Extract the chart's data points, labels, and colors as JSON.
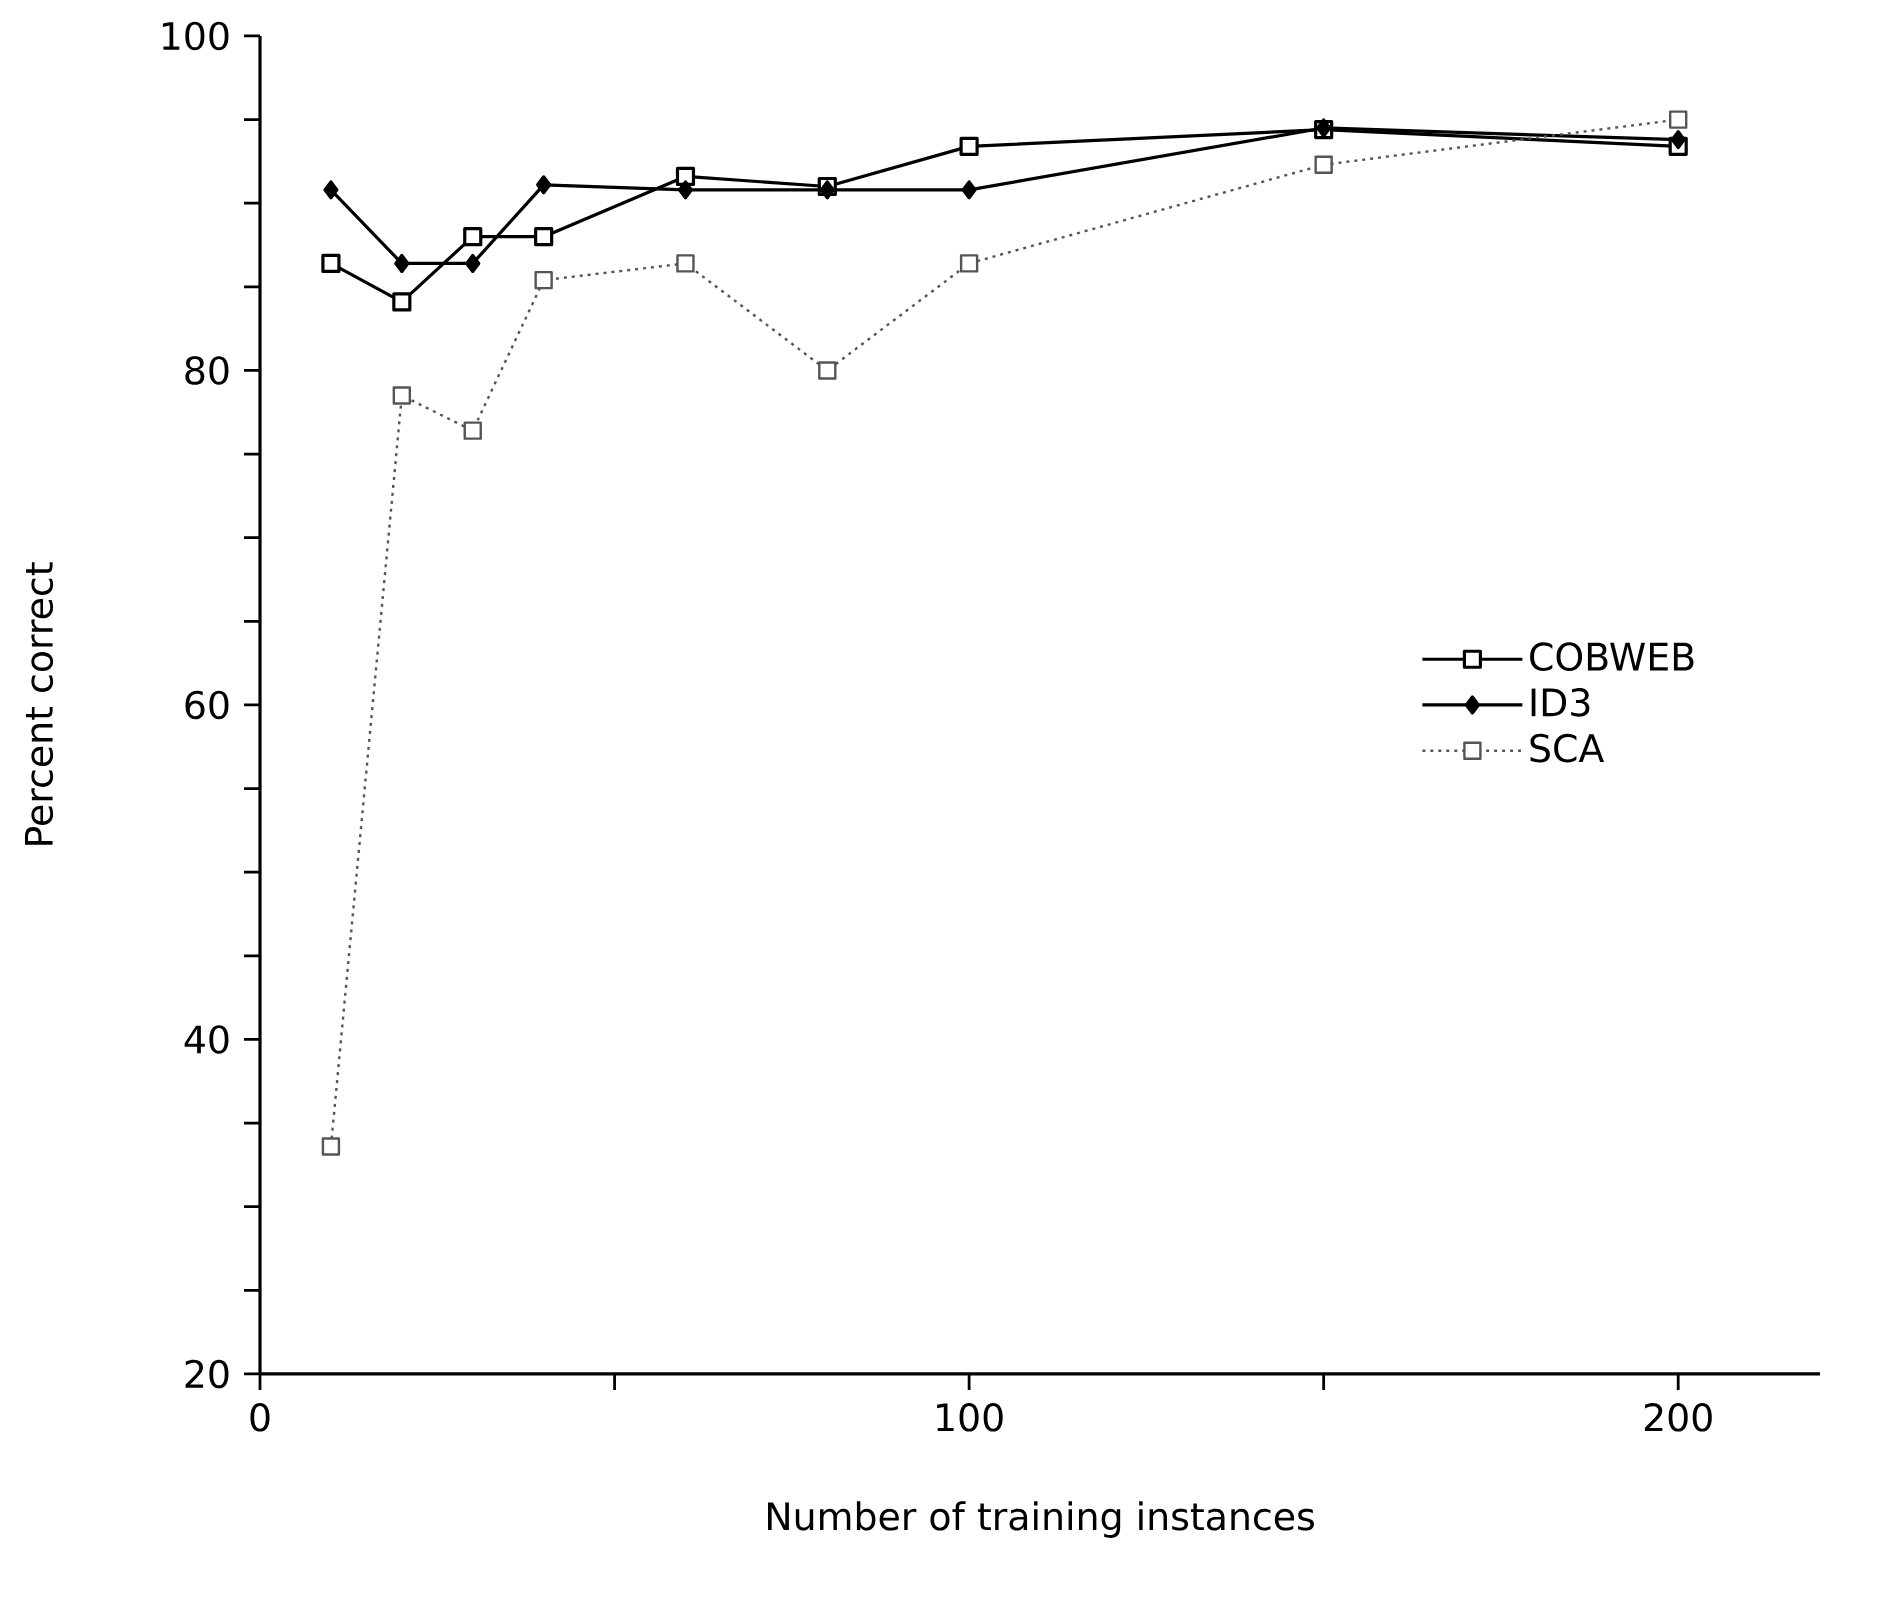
{
  "chart_data": {
    "type": "line",
    "xlabel": "Number of training instances",
    "ylabel": "Percent correct",
    "x": [
      10,
      20,
      30,
      40,
      60,
      80,
      100,
      150,
      200
    ],
    "series": [
      {
        "name": "COBWEB",
        "color": "#000000",
        "marker": "square",
        "line_style": "solid",
        "values": [
          86.4,
          84.1,
          88.0,
          88.0,
          91.6,
          91.0,
          93.4,
          94.4,
          93.4
        ]
      },
      {
        "name": "ID3",
        "color": "#000000",
        "marker": "diamond",
        "line_style": "solid",
        "values": [
          90.8,
          86.4,
          86.4,
          91.1,
          90.8,
          90.8,
          90.8,
          94.5,
          93.8
        ]
      },
      {
        "name": "SCA",
        "color": "#555555",
        "marker": "square",
        "line_style": "dotted",
        "values": [
          33.6,
          78.5,
          76.4,
          85.4,
          86.4,
          80.0,
          86.4,
          92.3,
          95.0
        ]
      }
    ],
    "xlim": [
      0,
      220
    ],
    "ylim": [
      20,
      100
    ],
    "xticks": [
      0,
      {
        "value": 50,
        "label": null
      },
      100,
      {
        "value": 150,
        "label": null
      },
      200
    ],
    "yticks": [
      20,
      {
        "value": 25,
        "label": null
      },
      {
        "value": 30,
        "label": null
      },
      {
        "value": 35,
        "label": null
      },
      40,
      {
        "value": 45,
        "label": null
      },
      {
        "value": 50,
        "label": null
      },
      {
        "value": 55,
        "label": null
      },
      60,
      {
        "value": 65,
        "label": null
      },
      {
        "value": 70,
        "label": null
      },
      {
        "value": 75,
        "label": null
      },
      80,
      {
        "value": 85,
        "label": null
      },
      {
        "value": 90,
        "label": null
      },
      {
        "value": 95,
        "label": null
      },
      100
    ],
    "grid": false,
    "legend": "right"
  }
}
